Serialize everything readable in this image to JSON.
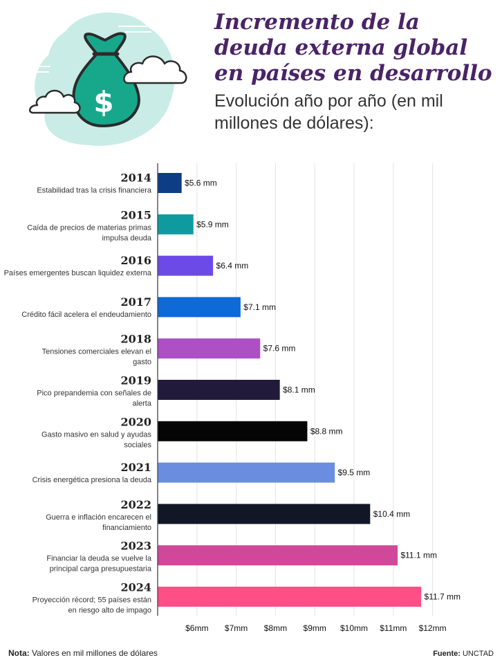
{
  "header": {
    "title": "Incremento de la deuda externa global en países en desarrollo",
    "subtitle": "Evolución año por año (en mil millones de dólares):"
  },
  "illustration": {
    "icon": "money-bag-icon",
    "symbol": "$",
    "colors": {
      "blob": "#c9ece6",
      "bag": "#17a88c",
      "outline": "#2b2b2b"
    }
  },
  "chart_data": {
    "type": "bar",
    "orientation": "horizontal",
    "xlim": [
      5,
      12.5
    ],
    "grid": true,
    "ticks": [
      {
        "value": 6,
        "label": "$6mm"
      },
      {
        "value": 7,
        "label": "$7mm"
      },
      {
        "value": 8,
        "label": "$8mm"
      },
      {
        "value": 9,
        "label": "$9mm"
      },
      {
        "value": 10,
        "label": "$10mm"
      },
      {
        "value": 11,
        "label": "$11mm"
      },
      {
        "value": 12,
        "label": "$12mm"
      }
    ],
    "bars": [
      {
        "year": "2014",
        "description": [
          "Estabilidad tras la crisis financiera"
        ],
        "value": 5.6,
        "label": "$5.6 mm",
        "color": "#0c3d85"
      },
      {
        "year": "2015",
        "description": [
          "Caída de precios de materias primas",
          "impulsa deuda"
        ],
        "value": 5.9,
        "label": "$5.9 mm",
        "color": "#0f9aa0"
      },
      {
        "year": "2016",
        "description": [
          "Países emergentes buscan liquidez externa"
        ],
        "value": 6.4,
        "label": "$6.4 mm",
        "color": "#6c4ae8"
      },
      {
        "year": "2017",
        "description": [
          "Crédito fácil acelera el endeudamiento"
        ],
        "value": 7.1,
        "label": "$7.1 mm",
        "color": "#0d6ad6"
      },
      {
        "year": "2018",
        "description": [
          "Tensiones comerciales elevan el",
          "gasto"
        ],
        "value": 7.6,
        "label": "$7.6 mm",
        "color": "#ad4fc5"
      },
      {
        "year": "2019",
        "description": [
          "Pico prepandemia con señales de",
          "alerta"
        ],
        "value": 8.1,
        "label": "$8.1 mm",
        "color": "#221a3a"
      },
      {
        "year": "2020",
        "description": [
          "Gasto masivo en salud y ayudas",
          "sociales"
        ],
        "value": 8.8,
        "label": "$8.8 mm",
        "color": "#050505"
      },
      {
        "year": "2021",
        "description": [
          "Crisis energética presiona la deuda"
        ],
        "value": 9.5,
        "label": "$9.5 mm",
        "color": "#6a8ddf"
      },
      {
        "year": "2022",
        "description": [
          "Guerra e inflación encarecen el",
          "financiamiento"
        ],
        "value": 10.4,
        "label": "$10.4 mm",
        "color": "#111726"
      },
      {
        "year": "2023",
        "description": [
          "Financiar la deuda se vuelve la",
          "principal carga presupuestaria"
        ],
        "value": 11.1,
        "label": "$11.1 mm",
        "color": "#d1479a"
      },
      {
        "year": "2024",
        "description": [
          "Proyección récord; 55 países están",
          "en riesgo alto de impago"
        ],
        "value": 11.7,
        "label": "$11.7 mm",
        "color": "#ff4f86"
      }
    ]
  },
  "footer": {
    "note_label": "Nota:",
    "note_text": " Valores en mil millones de dólares",
    "source_label": "Fuente:",
    "source_text": " UNCTAD"
  }
}
